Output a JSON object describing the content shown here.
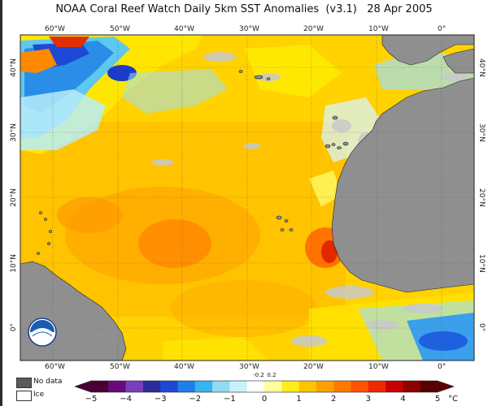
{
  "title": "NOAA Coral Reef Watch Daily 5km SST Anomalies  (v3.1)   28 Apr 2005",
  "map": {
    "lon_labels": [
      "60°W",
      "50°W",
      "40°W",
      "30°W",
      "20°W",
      "10°W",
      "0°"
    ],
    "lat_labels": [
      "40°N",
      "30°N",
      "20°N",
      "10°N",
      "0°"
    ],
    "logo_text": "NOAA"
  },
  "legend": {
    "no_data": "No data",
    "ice": "Ice",
    "no_data_color": "#5a5a5a",
    "ice_color": "#ffffff"
  },
  "colorbar": {
    "ticks": [
      "−5",
      "−4",
      "−3",
      "−2",
      "−1",
      "0",
      "1",
      "2",
      "3",
      "4",
      "5"
    ],
    "small_ticks": [
      "-0.2",
      "0.2"
    ],
    "unit": "°C",
    "colors": [
      "#4b0035",
      "#6a0a7a",
      "#7a3fbf",
      "#2c2c9c",
      "#1f48d6",
      "#1e7fe6",
      "#37b3ef",
      "#8fdbf4",
      "#c8f1fb",
      "#ffffff",
      "#ffffa0",
      "#ffec1a",
      "#ffc400",
      "#ffa000",
      "#ff7a00",
      "#ff5200",
      "#f02800",
      "#c80000",
      "#8c0000",
      "#5a0000"
    ]
  }
}
